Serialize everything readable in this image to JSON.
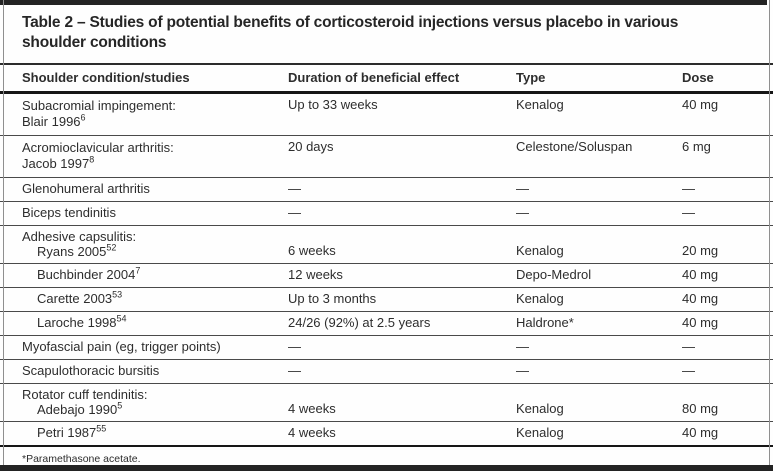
{
  "colors": {
    "text": "#2d2d2d",
    "rule": "#4a4a4a",
    "heavy_rule": "#161616",
    "frame_bar": "#232323",
    "background": "#fefefe"
  },
  "table": {
    "title_line1": "Table 2 – Studies of potential benefits of corticosteroid injections versus placebo in various",
    "title_line2": "shoulder conditions",
    "columns": [
      "Shoulder condition/studies",
      "Duration of beneficial effect",
      "Type",
      "Dose"
    ],
    "rows": [
      {
        "kind": "two-line",
        "condition": "Subacromial impingement:",
        "study": "Blair 1996",
        "ref": "6",
        "duration": "Up to 33 weeks",
        "type": "Kenalog",
        "dose": "40 mg"
      },
      {
        "kind": "two-line",
        "condition": "Acromioclavicular arthritis:",
        "study": "Jacob 1997",
        "ref": "8",
        "duration": "20 days",
        "type": "Celestone/Soluspan",
        "dose": "6 mg"
      },
      {
        "kind": "simple",
        "condition": "Glenohumeral arthritis",
        "duration": "—",
        "type": "—",
        "dose": "—"
      },
      {
        "kind": "simple",
        "condition": "Biceps tendinitis",
        "duration": "—",
        "type": "—",
        "dose": "—"
      },
      {
        "kind": "group",
        "group": "Adhesive capsulitis:",
        "study": "Ryans 2005",
        "ref": "52",
        "duration": "6 weeks",
        "type": "Kenalog",
        "dose": "20 mg"
      },
      {
        "kind": "study",
        "study": "Buchbinder 2004",
        "ref": "7",
        "duration": "12 weeks",
        "type": "Depo-Medrol",
        "dose": "40 mg"
      },
      {
        "kind": "study",
        "study": "Carette 2003",
        "ref": "53",
        "duration": "Up to 3 months",
        "type": "Kenalog",
        "dose": "40 mg"
      },
      {
        "kind": "study",
        "study": "Laroche 1998",
        "ref": "54",
        "duration": "24/26 (92%) at 2.5 years",
        "type": "Haldrone*",
        "dose": "40 mg"
      },
      {
        "kind": "simple",
        "condition": "Myofascial pain (eg, trigger points)",
        "duration": "—",
        "type": "—",
        "dose": "—"
      },
      {
        "kind": "simple",
        "condition": "Scapulothoracic bursitis",
        "duration": "—",
        "type": "—",
        "dose": "—"
      },
      {
        "kind": "group",
        "group": "Rotator cuff tendinitis:",
        "study": "Adebajo 1990",
        "ref": "5",
        "duration": "4 weeks",
        "type": "Kenalog",
        "dose": "80 mg"
      },
      {
        "kind": "study",
        "study": "Petri 1987",
        "ref": "55",
        "duration": "4 weeks",
        "type": "Kenalog",
        "dose": "40 mg"
      }
    ],
    "footnote": "*Paramethasone acetate."
  }
}
